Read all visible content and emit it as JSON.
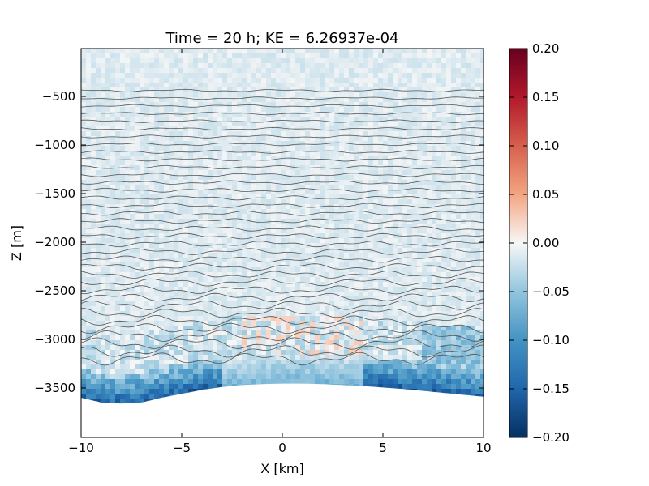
{
  "chart_data": {
    "type": "heatmap",
    "title": "Time = 20 h; KE = 6.26937e-04",
    "xlabel": "X [km]",
    "ylabel": "Z [m]",
    "xlim": [
      -10,
      10
    ],
    "ylim": [
      -4000,
      -500
    ],
    "ylim_note_top": -500,
    "x_ticks": [
      -10,
      -5,
      0,
      5,
      10
    ],
    "y_ticks": [
      -3500,
      -3000,
      -2500,
      -2000,
      -1500,
      -1000,
      -500
    ],
    "colorbar": {
      "vmin": -0.2,
      "vmax": 0.2,
      "colormap": "RdBu_r",
      "ticks": [
        "0.20",
        "0.15",
        "0.10",
        "0.05",
        "0.00",
        "−0.05",
        "−0.10",
        "−0.15",
        "−0.20"
      ]
    },
    "bathymetry": {
      "x": [
        -10,
        -9,
        -8,
        -7,
        -6,
        -5,
        -4,
        -3,
        -2,
        -1,
        0,
        1,
        2,
        3,
        4,
        5,
        6,
        7,
        8,
        9,
        10
      ],
      "z": [
        -3600,
        -3650,
        -3660,
        -3650,
        -3600,
        -3560,
        -3520,
        -3490,
        -3470,
        -3460,
        -3455,
        -3455,
        -3460,
        -3470,
        -3480,
        -3495,
        -3510,
        -3530,
        -3550,
        -3570,
        -3590
      ]
    },
    "contours": {
      "count": 36,
      "z_top": -440,
      "z_bottom": -3200,
      "color": "#555555"
    },
    "field_summary": "velocity anomaly mostly near 0 in interior, strongest negative (blue, about -0.1 to -0.15) near the bottom boundary"
  }
}
